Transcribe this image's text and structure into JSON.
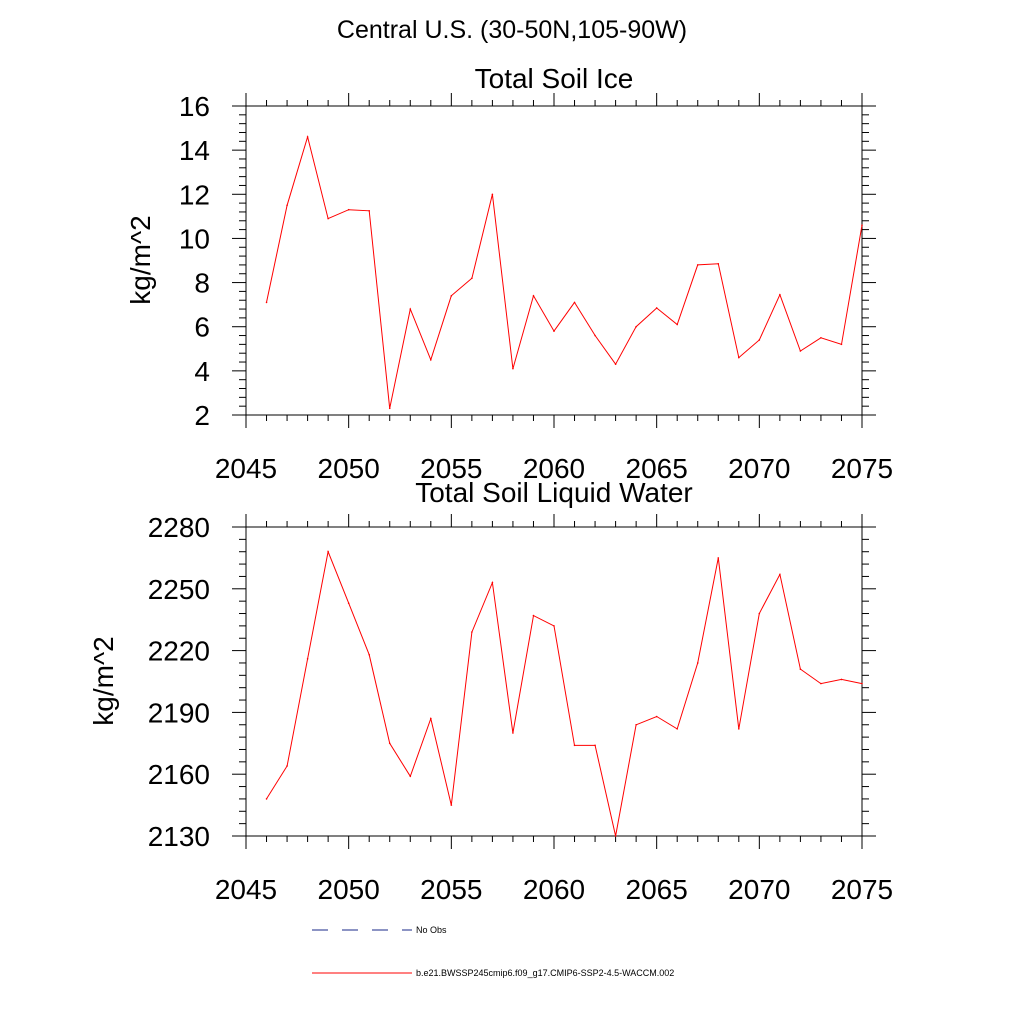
{
  "figure_title": "Central U.S. (30-50N,105-90W)",
  "chart_data": [
    {
      "type": "line",
      "title": "Total Soil Ice",
      "xlabel": "",
      "ylabel": "kg/m^2",
      "xlim": [
        2045,
        2075
      ],
      "ylim": [
        2,
        16
      ],
      "x_ticks": [
        2045,
        2050,
        2055,
        2060,
        2065,
        2070,
        2075
      ],
      "y_ticks": [
        2,
        4,
        6,
        8,
        10,
        12,
        14,
        16
      ],
      "x": [
        2046,
        2047,
        2048,
        2049,
        2050,
        2051,
        2052,
        2053,
        2054,
        2055,
        2056,
        2057,
        2058,
        2059,
        2060,
        2061,
        2062,
        2063,
        2064,
        2065,
        2066,
        2067,
        2068,
        2069,
        2070,
        2071,
        2072,
        2073,
        2074,
        2075
      ],
      "series": [
        {
          "name": "b.e21.BWSSP245cmip6.f09_g17.CMIP6-SSP2-4.5-WACCM.002",
          "color": "#ff0000",
          "values": [
            7.1,
            11.5,
            14.6,
            10.9,
            11.3,
            11.25,
            2.3,
            6.8,
            4.5,
            7.4,
            8.2,
            12.0,
            4.1,
            7.4,
            5.8,
            7.1,
            5.6,
            4.3,
            6.0,
            6.85,
            6.1,
            8.8,
            8.85,
            4.6,
            5.4,
            7.45,
            4.9,
            5.5,
            5.2,
            10.6
          ]
        }
      ]
    },
    {
      "type": "line",
      "title": "Total Soil Liquid Water",
      "xlabel": "",
      "ylabel": "kg/m^2",
      "xlim": [
        2045,
        2075
      ],
      "ylim": [
        2130,
        2280
      ],
      "x_ticks": [
        2045,
        2050,
        2055,
        2060,
        2065,
        2070,
        2075
      ],
      "y_ticks": [
        2130,
        2160,
        2190,
        2220,
        2250,
        2280
      ],
      "x": [
        2046,
        2047,
        2048,
        2049,
        2050,
        2051,
        2052,
        2053,
        2054,
        2055,
        2056,
        2057,
        2058,
        2059,
        2060,
        2061,
        2062,
        2063,
        2064,
        2065,
        2066,
        2067,
        2068,
        2069,
        2070,
        2071,
        2072,
        2073,
        2074,
        2075
      ],
      "series": [
        {
          "name": "b.e21.BWSSP245cmip6.f09_g17.CMIP6-SSP2-4.5-WACCM.002",
          "color": "#ff0000",
          "values": [
            2148,
            2164,
            2216,
            2268,
            2243,
            2218,
            2175,
            2159,
            2187,
            2145,
            2229,
            2253,
            2180,
            2237,
            2232,
            2174,
            2174,
            2130,
            2184,
            2188,
            2182,
            2214,
            2265,
            2182,
            2238,
            2257,
            2211,
            2204,
            2206,
            2204
          ]
        }
      ]
    }
  ],
  "legend": {
    "entries": [
      {
        "label": "No Obs",
        "style": "dashed",
        "color": "#1a2a8a"
      },
      {
        "label": "b.e21.BWSSP245cmip6.f09_g17.CMIP6-SSP2-4.5-WACCM.002",
        "style": "solid",
        "color": "#ff0000"
      }
    ]
  }
}
